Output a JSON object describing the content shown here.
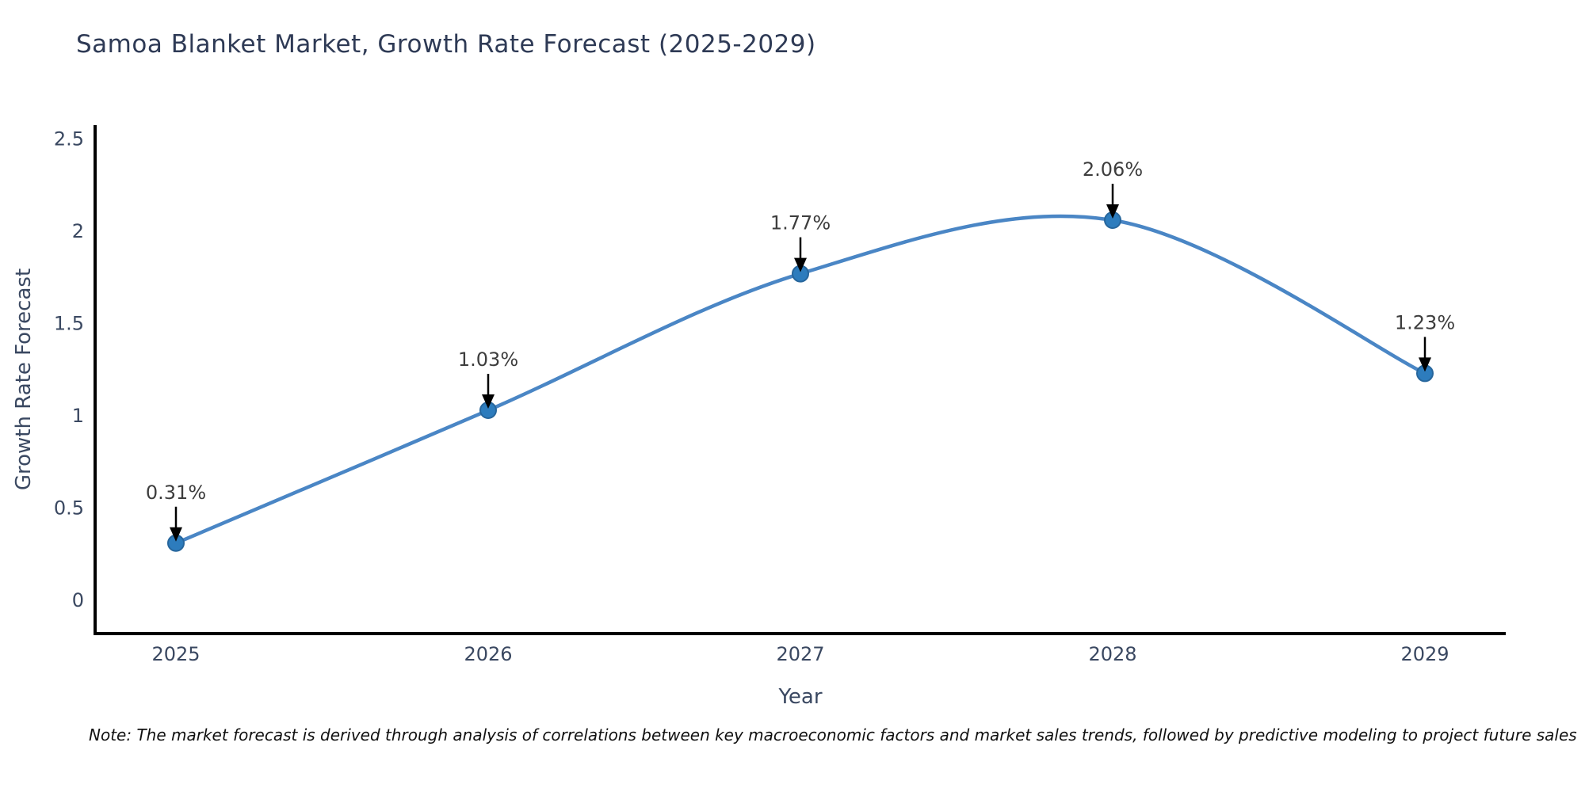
{
  "title": "Samoa Blanket Market, Growth Rate Forecast (2025-2029)",
  "note": "Note: The market forecast is derived through analysis of correlations between key macroeconomic factors and market sales trends, followed by predictive modeling to project future sales",
  "chart_data": {
    "type": "line",
    "title": "Samoa Blanket Market, Growth Rate Forecast (2025-2029)",
    "x": [
      "2025",
      "2026",
      "2027",
      "2028",
      "2029"
    ],
    "values": [
      0.31,
      1.03,
      1.77,
      2.06,
      1.23
    ],
    "point_labels": [
      "0.31%",
      "1.03%",
      "1.77%",
      "2.06%",
      "1.23%"
    ],
    "xlabel": "Year",
    "ylabel": "Growth Rate Forecast",
    "y_ticks": [
      0,
      0.5,
      1,
      1.5,
      2,
      2.5
    ],
    "y_tick_labels": [
      "0",
      "0.5",
      "1",
      "1.5",
      "2",
      "2.5"
    ],
    "ylim": [
      -0.18,
      2.58
    ],
    "grid": false,
    "legend": "none",
    "curve": "smooth-spline",
    "colors": {
      "line": "#4a86c5",
      "marker_fill": "#2d7cbd",
      "marker_edge": "#27669c",
      "axis": "#000000",
      "tick_text": "#3a4861",
      "axis_label_text": "#3a4861",
      "annotation_text": "#3d3d3d",
      "annotation_arrow": "#000000",
      "title_text": "#2e3a55"
    }
  }
}
